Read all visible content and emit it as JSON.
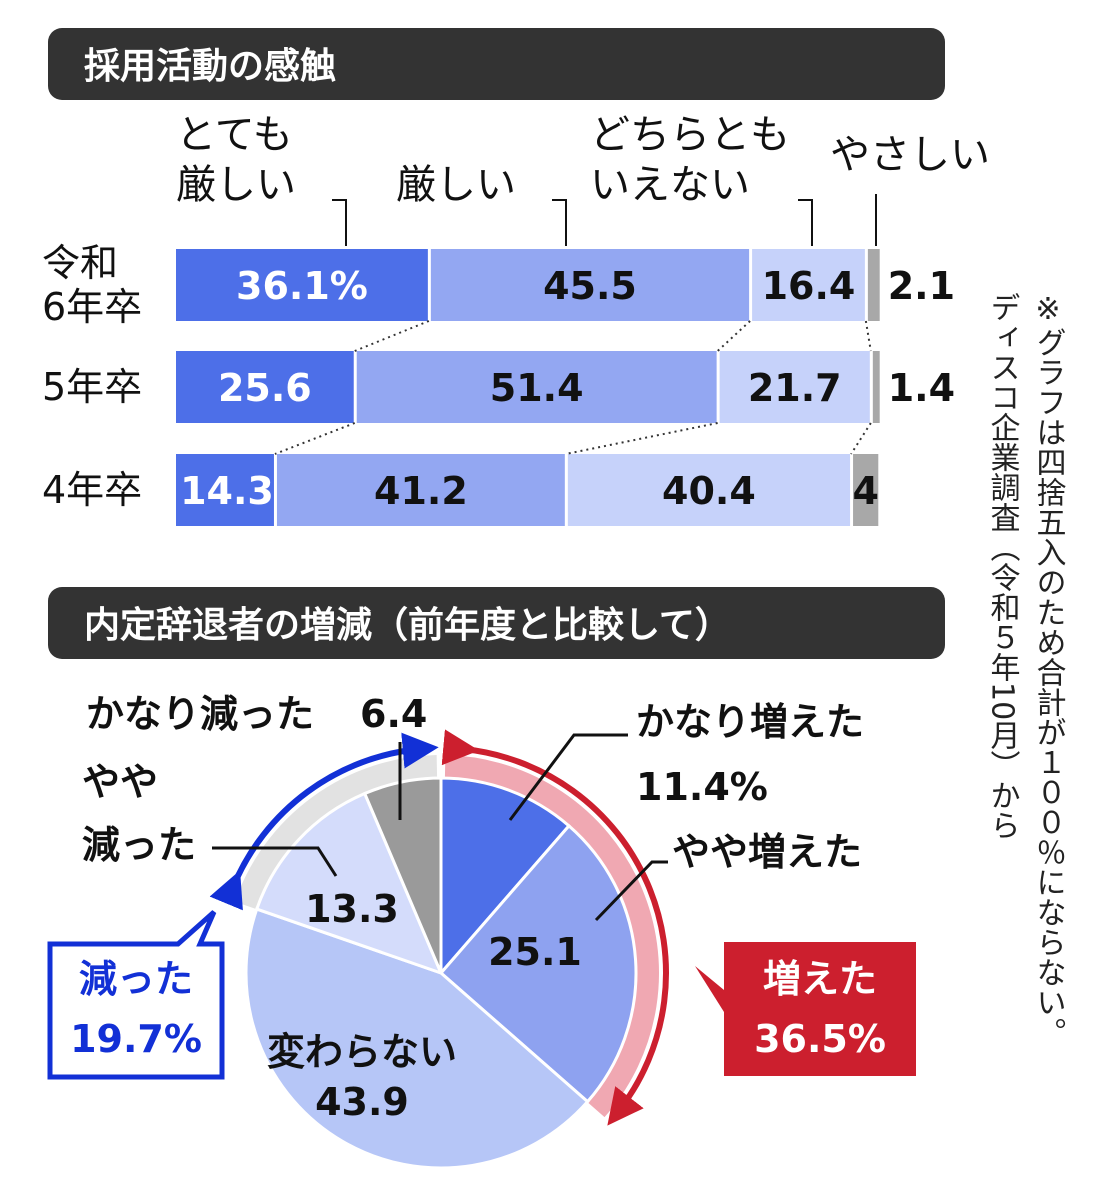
{
  "sections": {
    "bar_header": "採用活動の感触",
    "pie_header": "内定辞退者の増減（前年度と比較して）"
  },
  "footnote": {
    "line1": "※グラフは四捨五入のため合計が１００％にならない。",
    "line2": "ディスコ企業調査（令和５年10月）から"
  },
  "colors": {
    "very_hard": "#4d6fe8",
    "hard": "#93a7f2",
    "neither": "#c6d2fa",
    "easy": "#a8a8a8",
    "header_bg": "#333333",
    "increase_red": "#cc1f2e",
    "increase_pink": "#f0a8b2",
    "decrease_blue": "#1230d6",
    "decrease_gray": "#e2e2e2",
    "pie_much_more": "#4d6fe8",
    "pie_slightly_more": "#8ea2f0",
    "pie_no_change": "#b6c6f7",
    "pie_slightly_less": "#d4dcfb",
    "pie_much_less": "#9a9a9a"
  },
  "chart_data": [
    {
      "type": "bar",
      "orientation": "horizontal-stacked",
      "title": "採用活動の感触",
      "categories": [
        "令和6年卒",
        "5年卒",
        "4年卒"
      ],
      "category_display": [
        [
          "令和",
          "6年卒"
        ],
        [
          "5年卒"
        ],
        [
          "4年卒"
        ]
      ],
      "series": [
        {
          "name": "とても厳しい",
          "name_lines": [
            "とても",
            "厳しい"
          ],
          "values": [
            36.1,
            25.6,
            14.3
          ],
          "labels": [
            "36.1%",
            "25.6",
            "14.3"
          ]
        },
        {
          "name": "厳しい",
          "name_lines": [
            "厳しい"
          ],
          "values": [
            45.5,
            51.4,
            41.2
          ],
          "labels": [
            "45.5",
            "51.4",
            "41.2"
          ]
        },
        {
          "name": "どちらともいえない",
          "name_lines": [
            "どちらとも",
            "いえない"
          ],
          "values": [
            16.4,
            21.7,
            40.4
          ],
          "labels": [
            "16.4",
            "21.7",
            "40.4"
          ]
        },
        {
          "name": "やさしい",
          "name_lines": [
            "やさしい"
          ],
          "values": [
            2.1,
            1.4,
            4
          ],
          "labels": [
            "2.1",
            "1.4",
            "4"
          ]
        }
      ],
      "xlim": [
        0,
        100
      ],
      "legend": "top"
    },
    {
      "type": "pie",
      "title": "内定辞退者の増減（前年度と比較して）",
      "slices": [
        {
          "name": "かなり増えた",
          "value": 11.4,
          "label": "11.4%"
        },
        {
          "name": "やや増えた",
          "value": 25.1,
          "label": "25.1"
        },
        {
          "name": "変わらない",
          "value": 43.9,
          "label": "43.9"
        },
        {
          "name": "やや減った",
          "value": 13.3,
          "label": "13.3"
        },
        {
          "name": "かなり減った",
          "value": 6.4,
          "label": "6.4"
        }
      ],
      "groups": [
        {
          "name": "増えた",
          "value": 36.5,
          "label": "36.5%"
        },
        {
          "name": "減った",
          "value": 19.7,
          "label": "19.7%"
        }
      ]
    }
  ]
}
